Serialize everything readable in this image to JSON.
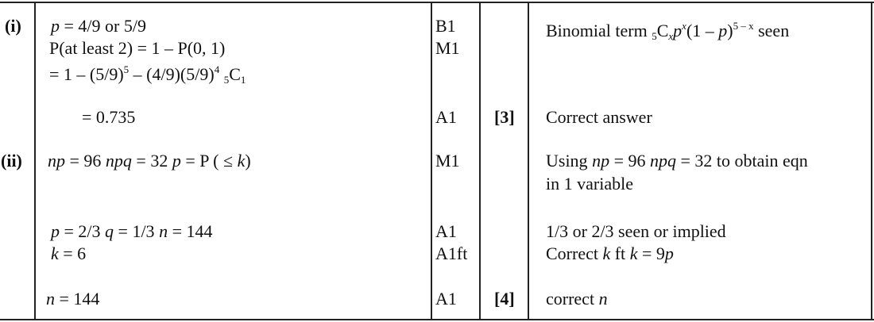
{
  "parts": [
    {
      "label": "(i)",
      "working": [
        [
          {
            "t": "p",
            "s": "i"
          },
          {
            "t": " = 4/9 or 5/9"
          }
        ],
        [
          {
            "t": "P(at least 2) = 1 – P(0, 1)"
          }
        ],
        [
          {
            "t": "= 1 – (5/9)"
          },
          {
            "t": "5",
            "s": "sup"
          },
          {
            "t": " – (4/9)(5/9)"
          },
          {
            "t": "4",
            "s": "sup"
          },
          {
            "t": " "
          },
          {
            "t": "5",
            "s": "sub"
          },
          {
            "t": "C"
          },
          {
            "t": "1",
            "s": "sub"
          }
        ],
        [
          {
            "t": "= 0.735"
          }
        ]
      ],
      "marks": [
        "B1",
        "M1",
        "A1"
      ],
      "total": "[3]",
      "guidance": [
        [
          {
            "t": "Binomial term "
          },
          {
            "t": "5",
            "s": "sub"
          },
          {
            "t": "C"
          },
          {
            "t": "x",
            "s": "sub i"
          },
          {
            "t": "p",
            "s": "i"
          },
          {
            "t": "x",
            "s": "sup i"
          },
          {
            "t": "(1 – "
          },
          {
            "t": "p",
            "s": "i"
          },
          {
            "t": ")"
          },
          {
            "t": "5 – x",
            "s": "sup"
          },
          {
            "t": " seen"
          }
        ],
        [
          {
            "t": "Correct answer"
          }
        ]
      ]
    },
    {
      "label": "(ii)",
      "working": [
        [
          {
            "t": "np",
            "s": "i"
          },
          {
            "t": " = 96 "
          },
          {
            "t": "npq",
            "s": "i"
          },
          {
            "t": " = 32 "
          },
          {
            "t": "p",
            "s": "i"
          },
          {
            "t": " = P ( ≤ "
          },
          {
            "t": "k",
            "s": "i"
          },
          {
            "t": ")"
          }
        ],
        [
          {
            "t": "p",
            "s": "i"
          },
          {
            "t": " = 2/3 "
          },
          {
            "t": "q",
            "s": "i"
          },
          {
            "t": " = 1/3 "
          },
          {
            "t": "n",
            "s": "i"
          },
          {
            "t": " = 144"
          }
        ],
        [
          {
            "t": "k",
            "s": "i"
          },
          {
            "t": " = 6"
          }
        ],
        [
          {
            "t": "n",
            "s": "i"
          },
          {
            "t": " = 144"
          }
        ]
      ],
      "marks": [
        "M1",
        "A1",
        "A1ft",
        "A1"
      ],
      "total": "[4]",
      "guidance": [
        [
          {
            "t": "Using "
          },
          {
            "t": "np",
            "s": "i"
          },
          {
            "t": " = 96 "
          },
          {
            "t": "npq",
            "s": "i"
          },
          {
            "t": " = 32 to obtain eqn"
          }
        ],
        [
          {
            "t": "in 1 variable"
          }
        ],
        [
          {
            "t": "1/3 or 2/3 seen or implied"
          }
        ],
        [
          {
            "t": "Correct "
          },
          {
            "t": "k",
            "s": "i"
          },
          {
            "t": " ft "
          },
          {
            "t": "k",
            "s": "i"
          },
          {
            "t": " = 9"
          },
          {
            "t": "p",
            "s": "i"
          }
        ],
        [
          {
            "t": "correct "
          },
          {
            "t": "n",
            "s": "i"
          }
        ]
      ]
    }
  ]
}
